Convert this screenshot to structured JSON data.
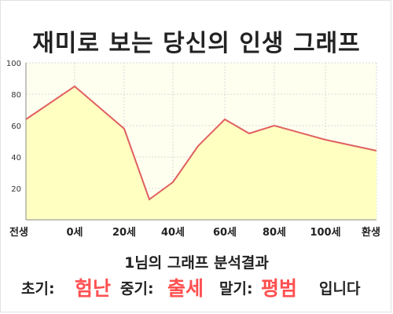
{
  "title": "재미로 보는 당신의 인생 그래프",
  "chart_data": {
    "type": "area",
    "x_labels": [
      "전생",
      "0세",
      "20세",
      "40세",
      "60세",
      "80세",
      "100세",
      "환생"
    ],
    "y_ticks": [
      20,
      40,
      60,
      80,
      100
    ],
    "ylim": [
      0,
      100
    ],
    "points": [
      {
        "x": "전생",
        "y": 64
      },
      {
        "x": "0세",
        "y": 85
      },
      {
        "x": "20세",
        "y": 58
      },
      {
        "x": "30세",
        "y": 13
      },
      {
        "x": "40세",
        "y": 24
      },
      {
        "x": "50세",
        "y": 47
      },
      {
        "x": "60세",
        "y": 64
      },
      {
        "x": "70세",
        "y": 55
      },
      {
        "x": "80세",
        "y": 60
      },
      {
        "x": "100세",
        "y": 51
      },
      {
        "x": "환생",
        "y": 44
      }
    ],
    "colors": {
      "line": "#e06060",
      "fill": "#ffffc2",
      "plot_bg": "#fffff0",
      "grid": "#d8d8d8"
    },
    "grid": true
  },
  "summary": "1님의 그래프 분석결과",
  "result": {
    "early_label": "초기:",
    "early_value": "험난",
    "mid_label": "중기:",
    "mid_value": "출세",
    "late_label": "말기:",
    "late_value": "평범",
    "ending": "입니다"
  }
}
